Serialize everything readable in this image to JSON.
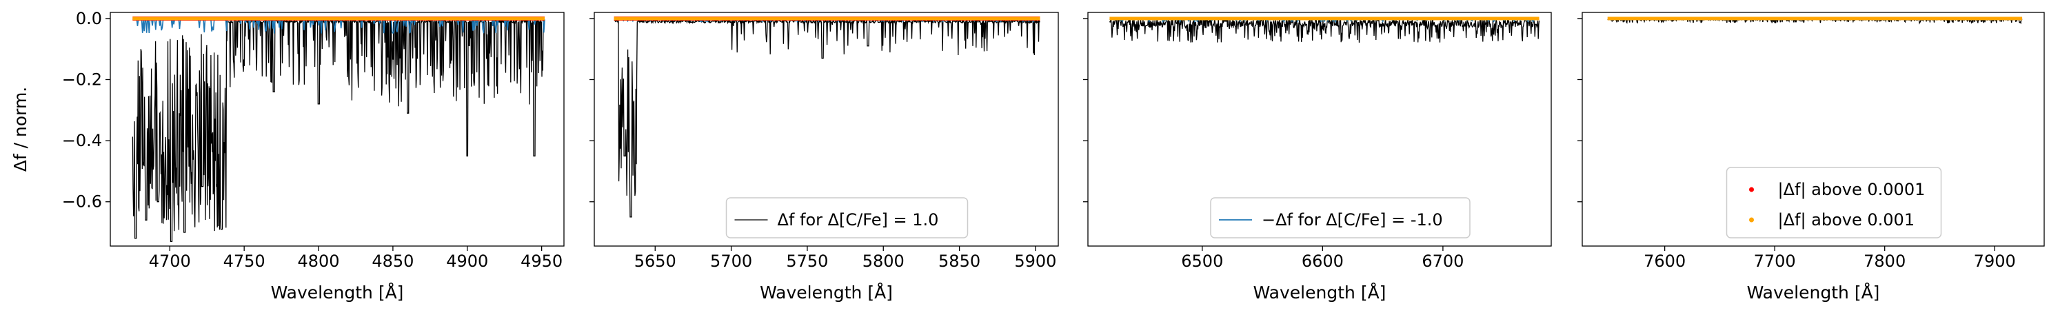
{
  "ylabel": "Δf / norm.",
  "xlabel_each": "Wavelength [Å]",
  "colors": {
    "black": "#000000",
    "blue": "#1f77b4",
    "red": "#ff0000",
    "orange": "#ffa500"
  },
  "chart_data": [
    {
      "type": "line",
      "xlim": [
        4660,
        4965
      ],
      "ylim": [
        -0.745,
        0.02
      ],
      "xticks": [
        4700,
        4750,
        4800,
        4850,
        4900,
        4950
      ],
      "yticks": [
        0.0,
        -0.2,
        -0.4,
        -0.6
      ],
      "ytick_labels": [
        "0.0",
        "−0.2",
        "−0.4",
        "−0.6"
      ],
      "xlabel": "Wavelength [Å]",
      "ylabel": "Δf / norm.",
      "legend": null,
      "series": [
        {
          "role": "black-dfpos",
          "x_range": [
            4675,
            4952
          ],
          "approx_features": [
            {
              "x": 4677,
              "depth": -0.72
            },
            {
              "x": 4684,
              "depth": -0.66
            },
            {
              "x": 4692,
              "depth": -0.6
            },
            {
              "x": 4701,
              "depth": -0.73
            },
            {
              "x": 4710,
              "depth": -0.7
            },
            {
              "x": 4722,
              "depth": -0.55
            },
            {
              "x": 4735,
              "depth": -0.69
            },
            {
              "x": 4770,
              "depth": -0.24
            },
            {
              "x": 4800,
              "depth": -0.28
            },
            {
              "x": 4860,
              "depth": -0.31
            },
            {
              "x": 4900,
              "depth": -0.45
            },
            {
              "x": 4945,
              "depth": -0.45
            }
          ]
        },
        {
          "role": "blue-dfneg",
          "x_range": [
            4675,
            4952
          ],
          "approx_min": -0.05
        },
        {
          "role": "red-0.0001",
          "x_range": [
            4675,
            4952
          ],
          "y": 0.0
        },
        {
          "role": "orange-0.001",
          "x_range": [
            4675,
            4952
          ],
          "y": 0.0
        }
      ]
    },
    {
      "type": "line",
      "xlim": [
        5610,
        5915
      ],
      "ylim": [
        -0.745,
        0.02
      ],
      "xticks": [
        5650,
        5700,
        5750,
        5800,
        5850,
        5900
      ],
      "yticks": [
        0.0,
        -0.2,
        -0.4,
        -0.6
      ],
      "xlabel": "Wavelength [Å]",
      "legend": {
        "placement": "lower-center",
        "entries": [
          {
            "label": "Δf for Δ[C/Fe] = 1.0",
            "color": "black",
            "kind": "line"
          }
        ]
      },
      "series": [
        {
          "role": "black-dfpos",
          "x_range": [
            5623,
            5903
          ],
          "approx_features": [
            {
              "x": 5630,
              "depth": -0.45
            },
            {
              "x": 5634,
              "depth": -0.65
            },
            {
              "x": 5760,
              "depth": -0.13
            },
            {
              "x": 5790,
              "depth": -0.09
            }
          ]
        },
        {
          "role": "blue-dfneg",
          "x_range": [
            5623,
            5903
          ],
          "approx_min": -0.01
        },
        {
          "role": "red-0.0001",
          "x_range": [
            5623,
            5903
          ],
          "y": 0.0
        },
        {
          "role": "orange-0.001",
          "x_range": [
            5623,
            5903
          ],
          "y": 0.0
        }
      ]
    },
    {
      "type": "line",
      "xlim": [
        6405,
        6790
      ],
      "ylim": [
        -0.745,
        0.02
      ],
      "xticks": [
        6500,
        6600,
        6700
      ],
      "yticks": [
        0.0,
        -0.2,
        -0.4,
        -0.6
      ],
      "xlabel": "Wavelength [Å]",
      "legend": {
        "placement": "lower-center",
        "entries": [
          {
            "label": "−Δf for Δ[C/Fe] = -1.0",
            "color": "blue",
            "kind": "line"
          }
        ]
      },
      "series": [
        {
          "role": "black-dfpos",
          "x_range": [
            6423,
            6780
          ],
          "approx_min": -0.08
        },
        {
          "role": "blue-dfneg",
          "x_range": [
            6423,
            6780
          ],
          "approx_min": -0.01
        },
        {
          "role": "orange-0.001",
          "x_range": [
            6423,
            6780
          ],
          "y": 0.0
        }
      ]
    },
    {
      "type": "line",
      "xlim": [
        7525,
        7945
      ],
      "ylim": [
        -0.745,
        0.02
      ],
      "xticks": [
        7600,
        7700,
        7800,
        7900
      ],
      "yticks": [
        0.0,
        -0.2,
        -0.4,
        -0.6
      ],
      "xlabel": "Wavelength [Å]",
      "legend": {
        "placement": "lower-center",
        "entries": [
          {
            "label": "|Δf| above 0.0001",
            "color": "red",
            "kind": "marker"
          },
          {
            "label": "|Δf| above 0.001",
            "color": "orange",
            "kind": "marker"
          }
        ]
      },
      "series": [
        {
          "role": "black-dfpos",
          "x_range": [
            7548,
            7925
          ],
          "approx_min": -0.015
        },
        {
          "role": "orange-0.001",
          "x_range": [
            7548,
            7925
          ],
          "y": 0.0
        }
      ]
    }
  ]
}
